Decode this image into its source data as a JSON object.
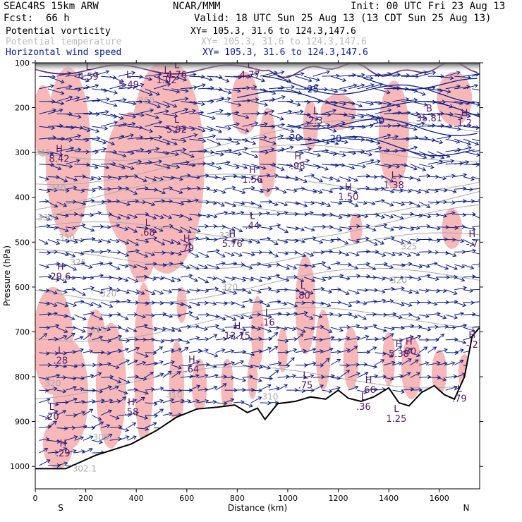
{
  "header": {
    "model": "SEAC4RS 15km ARW",
    "org": "NCAR/MMM",
    "init": "Init: 00 UTC Fri 23 Aug 13",
    "fcst_label": "Fcst:",
    "fcst_value": "66 h",
    "valid": "Valid: 18 UTC Sun 25 Aug 13 (13 CDT Sun 25 Aug 13)"
  },
  "legend": [
    {
      "name": "Potential vorticity",
      "xy": "XY= 105.3, 31.6 to 124.3,147.6",
      "color": "#000000"
    },
    {
      "name": "Potential temperature",
      "xy": "XY= 105.3, 31.6 to 124.3,147.6",
      "color": "#bbbbbb"
    },
    {
      "name": "Horizontal wind speed",
      "xy": "XY= 105.3, 31.6 to 124.3,147.6",
      "color": "#0b1e8a"
    }
  ],
  "colors": {
    "pv_fill": "#f8b8b8",
    "wind": "#0b1e8a",
    "theta": "#aaaaaa",
    "terrain": "#000000",
    "pv_label": "#551a66"
  },
  "chart_data": {
    "type": "cross-section",
    "xlabel": "Distance (km)",
    "ylabel": "Pressure (hPa)",
    "xlim": [
      0,
      1760
    ],
    "ylim": [
      1050,
      100
    ],
    "x_ticks": [
      "0",
      "200",
      "400",
      "600",
      "800",
      "1000",
      "1200",
      "1400",
      "1600"
    ],
    "x_tick_values": [
      0,
      200,
      400,
      600,
      800,
      1000,
      1200,
      1400,
      1600
    ],
    "y_ticks": [
      "100",
      "200",
      "300",
      "400",
      "500",
      "600",
      "700",
      "800",
      "900",
      "1000"
    ],
    "y_tick_values": [
      100,
      200,
      300,
      400,
      500,
      600,
      700,
      800,
      900,
      1000
    ],
    "end_labels": {
      "left": "S",
      "right": "N"
    },
    "terrain": [
      [
        0,
        1005
      ],
      [
        120,
        1005
      ],
      [
        240,
        975
      ],
      [
        380,
        950
      ],
      [
        480,
        920
      ],
      [
        560,
        890
      ],
      [
        640,
        872
      ],
      [
        720,
        868
      ],
      [
        790,
        863
      ],
      [
        840,
        880
      ],
      [
        880,
        870
      ],
      [
        910,
        895
      ],
      [
        960,
        860
      ],
      [
        1030,
        855
      ],
      [
        1090,
        845
      ],
      [
        1150,
        850
      ],
      [
        1200,
        830
      ],
      [
        1240,
        848
      ],
      [
        1290,
        855
      ],
      [
        1340,
        845
      ],
      [
        1400,
        825
      ],
      [
        1440,
        858
      ],
      [
        1480,
        865
      ],
      [
        1530,
        835
      ],
      [
        1580,
        820
      ],
      [
        1620,
        840
      ],
      [
        1660,
        850
      ],
      [
        1700,
        800
      ],
      [
        1730,
        710
      ],
      [
        1760,
        690
      ]
    ],
    "theta_contours": [
      {
        "label": "350",
        "x": 440,
        "p": 185
      },
      {
        "label": "345",
        "x": 30,
        "p": 300
      },
      {
        "label": "340",
        "x": 90,
        "p": 380
      },
      {
        "label": "335",
        "x": 40,
        "p": 445
      },
      {
        "label": "330",
        "x": 125,
        "p": 490
      },
      {
        "label": "330",
        "x": 760,
        "p": 485
      },
      {
        "label": "325",
        "x": 170,
        "p": 545
      },
      {
        "label": "325",
        "x": 1480,
        "p": 510
      },
      {
        "label": "320",
        "x": 290,
        "p": 615
      },
      {
        "label": "320",
        "x": 770,
        "p": 600
      },
      {
        "label": "320",
        "x": 1440,
        "p": 585
      },
      {
        "label": "315",
        "x": 250,
        "p": 695
      },
      {
        "label": "310",
        "x": 550,
        "p": 840
      },
      {
        "label": "310",
        "x": 930,
        "p": 845
      },
      {
        "label": "305",
        "x": 260,
        "p": 935
      },
      {
        "label": "302.1",
        "x": 195,
        "p": 1005
      },
      {
        "label": "320",
        "x": 70,
        "p": 815
      }
    ],
    "wind_contours": [
      {
        "label": "25",
        "x": 1100,
        "p": 160
      },
      {
        "label": "20",
        "x": 1190,
        "p": 270
      },
      {
        "label": "30",
        "x": 1360,
        "p": 230
      },
      {
        "label": "20",
        "x": 1030,
        "p": 268
      }
    ],
    "extrema": [
      {
        "type": "L",
        "value": "4.59",
        "x": 210,
        "p": 122
      },
      {
        "type": "L",
        "value": "5.49",
        "x": 370,
        "p": 140
      },
      {
        "type": "L",
        "value": "1.02",
        "x": 520,
        "p": 130
      },
      {
        "type": "L",
        "value": "4.76",
        "x": 560,
        "p": 118
      },
      {
        "type": "L",
        "value": "4.77",
        "x": 850,
        "p": 118
      },
      {
        "type": "L",
        "value": "5.92",
        "x": 560,
        "p": 240
      },
      {
        "type": "H",
        "value": "8.42",
        "x": 95,
        "p": 305
      },
      {
        "type": "H",
        "value": "1.56",
        "x": 860,
        "p": 352
      },
      {
        "type": "H",
        "value": ".98",
        "x": 1040,
        "p": 322
      },
      {
        "type": "H",
        "value": "1.50",
        "x": 1240,
        "p": 390
      },
      {
        "type": "L",
        "value": "1.38",
        "x": 1420,
        "p": 364
      },
      {
        "type": "L",
        "value": "2.3",
        "x": 1110,
        "p": 220
      },
      {
        "type": "B",
        "value": "35.81",
        "x": 1560,
        "p": 215
      },
      {
        "type": "H",
        "value": "1.2",
        "x": 1700,
        "p": 225
      },
      {
        "type": "L",
        "value": ".68",
        "x": 445,
        "p": 470
      },
      {
        "type": "L",
        "value": ".44",
        "x": 860,
        "p": 455
      },
      {
        "type": "H",
        "value": "5.76",
        "x": 780,
        "p": 495
      },
      {
        "type": "H",
        "value": ".79",
        "x": 600,
        "p": 505
      },
      {
        "type": "H",
        "value": "-.7",
        "x": 1730,
        "p": 495
      },
      {
        "type": "H",
        "value": "29.6",
        "x": 100,
        "p": 568
      },
      {
        "type": "L",
        "value": ".80",
        "x": 1060,
        "p": 610
      },
      {
        "type": "L",
        "value": ".16",
        "x": 920,
        "p": 670
      },
      {
        "type": "H",
        "value": "13.15",
        "x": 800,
        "p": 700
      },
      {
        "type": "H",
        "value": "5.38",
        "x": 1440,
        "p": 740
      },
      {
        "type": "H",
        "value": ".80",
        "x": 1480,
        "p": 735
      },
      {
        "type": "H",
        "value": "-.2",
        "x": 1730,
        "p": 720
      },
      {
        "type": "L",
        "value": ".28",
        "x": 100,
        "p": 755
      },
      {
        "type": "H",
        "value": ".64",
        "x": 620,
        "p": 775
      },
      {
        "type": "L",
        "value": ".75",
        "x": 1070,
        "p": 810
      },
      {
        "type": "H",
        "value": ".66",
        "x": 1320,
        "p": 820
      },
      {
        "type": "L",
        "value": ".36",
        "x": 1300,
        "p": 858
      },
      {
        "type": "L",
        "value": ".79",
        "x": 1680,
        "p": 840
      },
      {
        "type": "L",
        "value": "1.25",
        "x": 1430,
        "p": 885
      },
      {
        "type": "H",
        "value": ".58",
        "x": 380,
        "p": 870
      },
      {
        "type": "L",
        "value": ".20",
        "x": 65,
        "p": 880
      },
      {
        "type": "H",
        "value": ".29",
        "x": 110,
        "p": 962
      }
    ]
  }
}
